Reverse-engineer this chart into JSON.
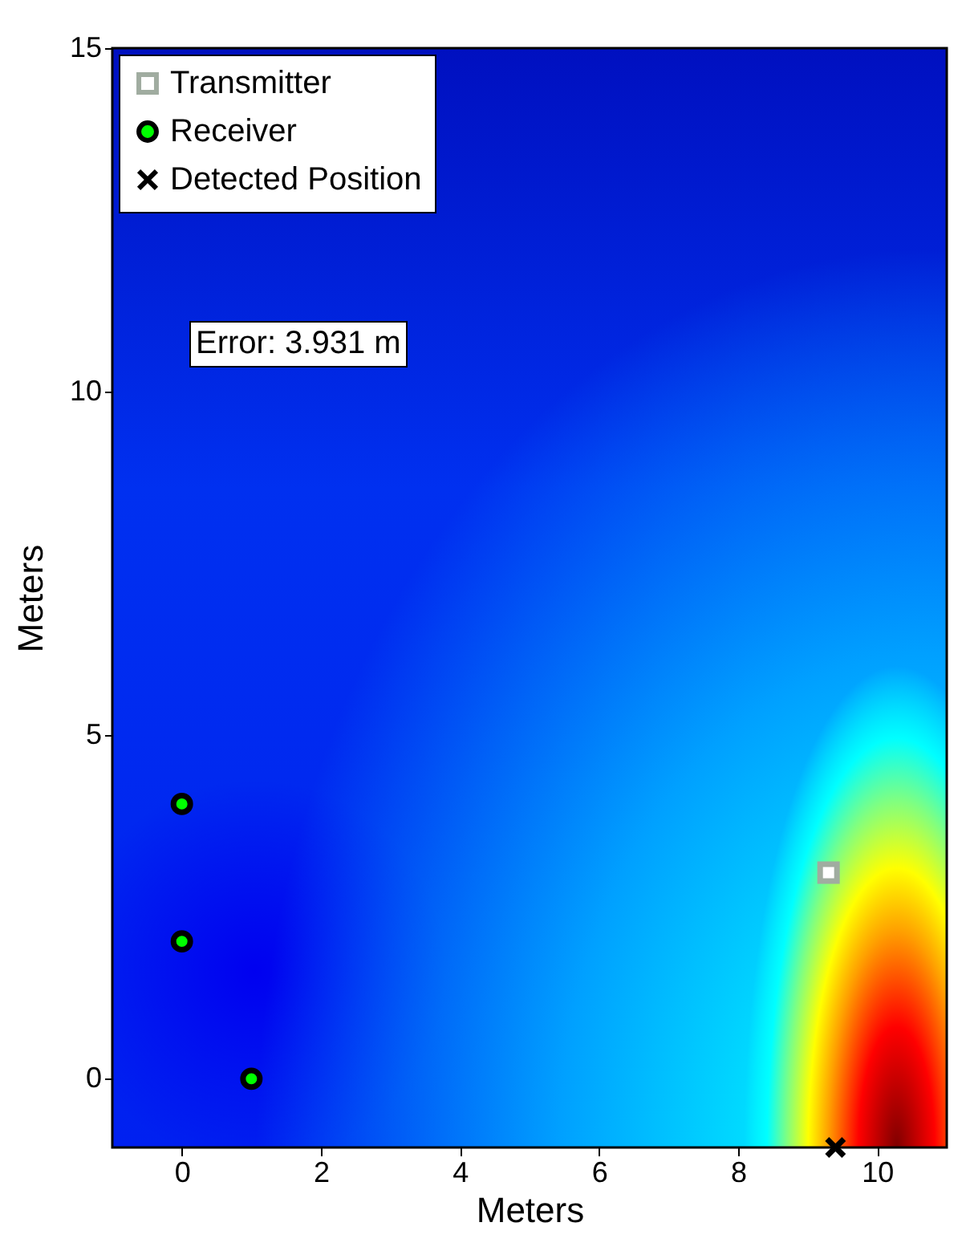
{
  "chart_data": {
    "type": "scatter",
    "xlabel": "Meters",
    "ylabel": "Meters",
    "xlim": [
      -1,
      11
    ],
    "xticks": [
      0,
      2,
      4,
      6,
      8,
      10
    ],
    "ylim": [
      -1,
      15
    ],
    "yticks": [
      0,
      5,
      10,
      15
    ],
    "grid": false,
    "legend": "top left",
    "annotations": [
      "Error: 3.931 m"
    ],
    "series": [
      {
        "name": "Transmitter",
        "color": "#a0aca0",
        "marker": "square",
        "x": [
          9.3
        ],
        "values": [
          3
        ]
      },
      {
        "name": "Receiver",
        "color": "#00ff00",
        "marker": "circle",
        "x": [
          0,
          0,
          1
        ],
        "values": [
          4,
          2,
          0
        ]
      },
      {
        "name": "Detected Position",
        "color": "#000000",
        "marker": "cross",
        "x": [
          9.4
        ],
        "values": [
          -1
        ]
      }
    ]
  }
}
